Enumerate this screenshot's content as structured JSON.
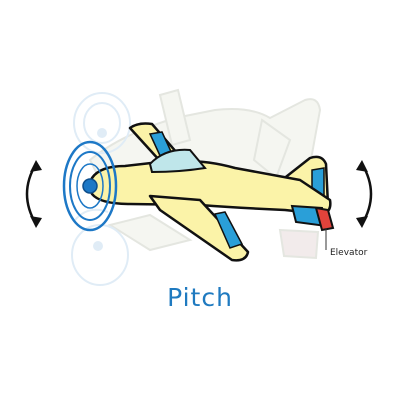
{
  "diagram": {
    "title": "Pitch",
    "callout_label": "Elevator",
    "icons": [
      "left-rotation-arrow-icon",
      "right-rotation-arrow-icon",
      "propeller-icon"
    ],
    "colors": {
      "airplane_body": "#fbf3a8",
      "ghost_airplane": "#eef0e6",
      "window_blue": "#2a9fd8",
      "canopy": "#bfe6ea",
      "elevator_red": "#e0433b",
      "propeller_blue": "#1d78c6",
      "outline": "#111111",
      "title_blue": "#1f7ac0"
    }
  }
}
